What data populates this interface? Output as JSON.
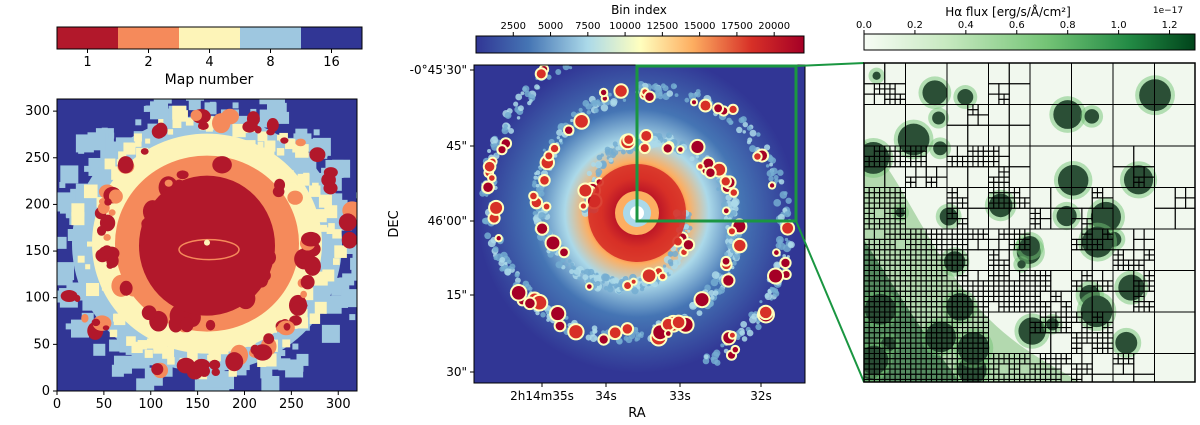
{
  "chart_data": [
    {
      "panel": "left",
      "type": "heatmap",
      "colorbar": {
        "label": "Map number",
        "categories": [
          "1",
          "2",
          "4",
          "8",
          "16"
        ],
        "colors": [
          "#b2182b",
          "#f58a5b",
          "#fdf4b8",
          "#9ec7e0",
          "#313695"
        ]
      },
      "x_ticks": [
        "0",
        "50",
        "100",
        "150",
        "200",
        "250",
        "300"
      ],
      "y_ticks": [
        "0",
        "50",
        "100",
        "150",
        "200",
        "250",
        "300"
      ],
      "xlim": [
        0,
        320
      ],
      "ylim": [
        0,
        313
      ],
      "structure": "binned spiral galaxy; map number rises outward from 1 in the core to 16 at the edge"
    },
    {
      "panel": "middle",
      "type": "heatmap",
      "colorbar": {
        "label": "Bin index",
        "ticks": [
          "2500",
          "5000",
          "7500",
          "10000",
          "12500",
          "15000",
          "17500",
          "20000"
        ],
        "range": [
          0,
          22000
        ],
        "colormap": [
          "#313695",
          "#4575b4",
          "#abd9e9",
          "#ffffbf",
          "#fdae61",
          "#d73027",
          "#a50026"
        ]
      },
      "xlabel": "RA",
      "ylabel": "DEC",
      "x_ticks": [
        "2h14m35s",
        "34s",
        "33s",
        "32s"
      ],
      "y_ticks": [
        "-0°45'30\"",
        "45\"",
        "46'00\"",
        "15\"",
        "30\""
      ],
      "zoom_box_color": "#1a9641"
    },
    {
      "panel": "right",
      "type": "heatmap",
      "colorbar": {
        "label": "Hα flux [erg/s/Å/cm²]",
        "ticks": [
          "0.0",
          "0.2",
          "0.4",
          "0.6",
          "0.8",
          "1.0",
          "1.2"
        ],
        "range": [
          0,
          1.3
        ],
        "offset_text": "1e−17",
        "colormap": [
          "#f7fcf5",
          "#c7e9c0",
          "#74c476",
          "#238b45",
          "#00441b"
        ]
      },
      "overlay": "adaptive bin boundaries (black grid)"
    }
  ],
  "colors": {
    "zoom_lines": "#1a9641"
  }
}
